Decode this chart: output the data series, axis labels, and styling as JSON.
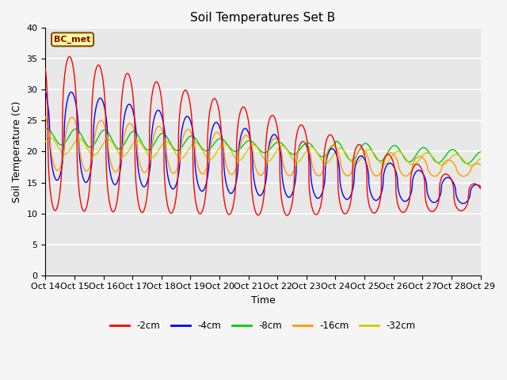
{
  "title": "Soil Temperatures Set B",
  "xlabel": "Time",
  "ylabel": "Soil Temperature (C)",
  "ylim": [
    0,
    40
  ],
  "xlim": [
    0,
    360
  ],
  "annotation": "BC_met",
  "legend_labels": [
    "-2cm",
    "-4cm",
    "-8cm",
    "-16cm",
    "-32cm"
  ],
  "line_colors": [
    "#ff0000",
    "#0000ff",
    "#00cc00",
    "#ff9900",
    "#cccc00"
  ],
  "background_color": "#e8e8e8",
  "x_tick_positions": [
    0,
    24,
    48,
    72,
    96,
    120,
    144,
    168,
    192,
    216,
    240,
    264,
    288,
    312,
    336,
    360
  ],
  "x_tick_labels": [
    "Oct 14",
    "Oct 15",
    "Oct 16",
    "Oct 17",
    "Oct 18",
    "Oct 19",
    "Oct 20",
    "Oct 21",
    "Oct 22",
    "Oct 23",
    "Oct 24",
    "Oct 25",
    "Oct 26",
    "Oct 27",
    "Oct 28",
    "Oct 29"
  ],
  "y_tick_positions": [
    0,
    5,
    10,
    15,
    20,
    25,
    30,
    35,
    40
  ],
  "grid_color": "#ffffff",
  "title_fontsize": 11,
  "label_fontsize": 9,
  "tick_fontsize": 8
}
